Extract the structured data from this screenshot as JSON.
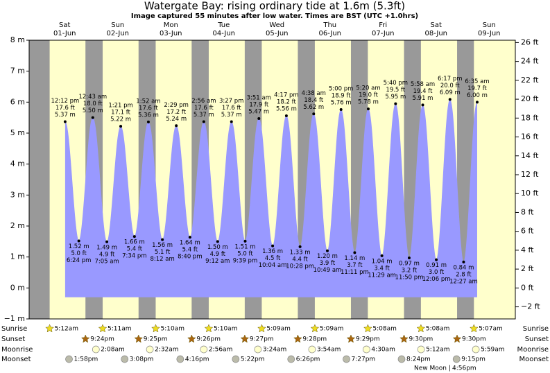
{
  "chart_data": {
    "type": "area",
    "title": "Watergate Bay: rising  ordinary tide at 1.6m (5.3ft)",
    "subtitle": "Image captured 55 minutes after low water. Times are BST (UTC +1.0hrs)",
    "ylim": [
      -1,
      8
    ],
    "yticks": [
      {
        "value": -1,
        "label": "−1 m"
      },
      {
        "value": 0,
        "label": "0 m"
      },
      {
        "value": 1,
        "label": "1 m"
      },
      {
        "value": 2,
        "label": "2 m"
      },
      {
        "value": 3,
        "label": "3 m"
      },
      {
        "value": 4,
        "label": "4 m"
      },
      {
        "value": 5,
        "label": "5 m"
      },
      {
        "value": 6,
        "label": "6 m"
      },
      {
        "value": 7,
        "label": "7 m"
      },
      {
        "value": 8,
        "label": "8 m"
      }
    ],
    "y2lim": [
      -3.28,
      26.25
    ],
    "y2ticks": [
      {
        "value": -2,
        "label": "−2 ft"
      },
      {
        "value": 0,
        "label": "0 ft"
      },
      {
        "value": 2,
        "label": "2 ft"
      },
      {
        "value": 4,
        "label": "4 ft"
      },
      {
        "value": 6,
        "label": "6 ft"
      },
      {
        "value": 8,
        "label": "8 ft"
      },
      {
        "value": 10,
        "label": "10 ft"
      },
      {
        "value": 12,
        "label": "12 ft"
      },
      {
        "value": 14,
        "label": "14 ft"
      },
      {
        "value": 16,
        "label": "16 ft"
      },
      {
        "value": 18,
        "label": "18 ft"
      },
      {
        "value": 20,
        "label": "20 ft"
      },
      {
        "value": 22,
        "label": "22 ft"
      },
      {
        "value": 24,
        "label": "24 ft"
      },
      {
        "value": 26,
        "label": "26 ft"
      }
    ],
    "tide_color": "#9999ff",
    "day_color": "#ffffcc",
    "night_color": "#999999",
    "date_color": "#dd0000",
    "row_labels": {
      "sunrise": "Sunrise",
      "sunset": "Sunset",
      "moonrise": "Moonrise",
      "moonset": "Moonset"
    },
    "moon_phase": {
      "name": "New Moon",
      "time": "4:56pm"
    },
    "days": [
      {
        "name": "Sat",
        "date": "01-Jun",
        "sunrise": "5:12am",
        "sunset": "9:24pm",
        "moonset": "1:58pm",
        "tides": [
          {
            "time": "12:12 pm",
            "height": 5.37,
            "label_m": "5.37 m",
            "label_ft": "17.6 ft",
            "high": true
          },
          {
            "time": "6:24 pm",
            "height": 1.52,
            "label_m": "1.52 m",
            "label_ft": "5.0 ft",
            "high": false
          }
        ]
      },
      {
        "name": "Sun",
        "date": "02-Jun",
        "sunrise": "5:11am",
        "sunset": "9:25pm",
        "moonrise": "2:08am",
        "moonset": "3:08pm",
        "tides": [
          {
            "time": "12:43 am",
            "height": 5.5,
            "label_m": "5.50 m",
            "label_ft": "18.0 ft",
            "high": true
          },
          {
            "time": "7:05 am",
            "height": 1.49,
            "label_m": "1.49 m",
            "label_ft": "4.9 ft",
            "high": false
          },
          {
            "time": "1:21 pm",
            "height": 5.22,
            "label_m": "5.22 m",
            "label_ft": "17.1 ft",
            "high": true
          },
          {
            "time": "7:34 pm",
            "height": 1.66,
            "label_m": "1.66 m",
            "label_ft": "5.4 ft",
            "high": false
          }
        ]
      },
      {
        "name": "Mon",
        "date": "03-Jun",
        "sunrise": "5:10am",
        "sunset": "9:26pm",
        "moonrise": "2:32am",
        "moonset": "4:16pm",
        "tides": [
          {
            "time": "1:52 am",
            "height": 5.36,
            "label_m": "5.36 m",
            "label_ft": "17.6 ft",
            "high": true
          },
          {
            "time": "8:12 am",
            "height": 1.56,
            "label_m": "1.56 m",
            "label_ft": "5.1 ft",
            "high": false
          },
          {
            "time": "2:29 pm",
            "height": 5.24,
            "label_m": "5.24 m",
            "label_ft": "17.2 ft",
            "high": true
          },
          {
            "time": "8:40 pm",
            "height": 1.64,
            "label_m": "1.64 m",
            "label_ft": "5.4 ft",
            "high": false
          }
        ]
      },
      {
        "name": "Tue",
        "date": "04-Jun",
        "sunrise": "5:10am",
        "sunset": "9:27pm",
        "moonrise": "2:56am",
        "moonset": "5:22pm",
        "tides": [
          {
            "time": "2:56 am",
            "height": 5.37,
            "label_m": "5.37 m",
            "label_ft": "17.6 ft",
            "high": true
          },
          {
            "time": "9:12 am",
            "height": 1.5,
            "label_m": "1.50 m",
            "label_ft": "4.9 ft",
            "high": false
          },
          {
            "time": "3:27 pm",
            "height": 5.37,
            "label_m": "5.37 m",
            "label_ft": "17.6 ft",
            "high": true
          },
          {
            "time": "9:39 pm",
            "height": 1.51,
            "label_m": "1.51 m",
            "label_ft": "5.0 ft",
            "high": false
          }
        ]
      },
      {
        "name": "Wed",
        "date": "05-Jun",
        "sunrise": "5:09am",
        "sunset": "9:28pm",
        "moonrise": "3:24am",
        "moonset": "6:26pm",
        "tides": [
          {
            "time": "3:51 am",
            "height": 5.47,
            "label_m": "5.47 m",
            "label_ft": "17.9 ft",
            "high": true
          },
          {
            "time": "10:04 am",
            "height": 1.36,
            "label_m": "1.36 m",
            "label_ft": "4.5 ft",
            "high": false
          },
          {
            "time": "4:17 pm",
            "height": 5.56,
            "label_m": "5.56 m",
            "label_ft": "18.2 ft",
            "high": true
          },
          {
            "time": "10:28 pm",
            "height": 1.33,
            "label_m": "1.33 m",
            "label_ft": "4.4 ft",
            "high": false
          }
        ]
      },
      {
        "name": "Thu",
        "date": "06-Jun",
        "sunrise": "5:09am",
        "sunset": "9:29pm",
        "moonrise": "3:54am",
        "moonset": "7:27pm",
        "tides": [
          {
            "time": "4:38 am",
            "height": 5.62,
            "label_m": "5.62 m",
            "label_ft": "18.4 ft",
            "high": true
          },
          {
            "time": "10:49 am",
            "height": 1.2,
            "label_m": "1.20 m",
            "label_ft": "3.9 ft",
            "high": false
          },
          {
            "time": "5:00 pm",
            "height": 5.76,
            "label_m": "5.76 m",
            "label_ft": "18.9 ft",
            "high": true
          },
          {
            "time": "11:11 pm",
            "height": 1.14,
            "label_m": "1.14 m",
            "label_ft": "3.7 ft",
            "high": false
          }
        ]
      },
      {
        "name": "Fri",
        "date": "07-Jun",
        "sunrise": "5:08am",
        "sunset": "9:30pm",
        "moonrise": "4:30am",
        "moonset": "8:24pm",
        "tides": [
          {
            "time": "5:20 am",
            "height": 5.78,
            "label_m": "5.78 m",
            "label_ft": "19.0 ft",
            "high": true
          },
          {
            "time": "11:29 am",
            "height": 1.04,
            "label_m": "1.04 m",
            "label_ft": "3.4 ft",
            "high": false
          },
          {
            "time": "5:40 pm",
            "height": 5.95,
            "label_m": "5.95 m",
            "label_ft": "19.5 ft",
            "high": true
          },
          {
            "time": "11:50 pm",
            "height": 0.97,
            "label_m": "0.97 m",
            "label_ft": "3.2 ft",
            "high": false
          }
        ]
      },
      {
        "name": "Sat",
        "date": "08-Jun",
        "sunrise": "5:08am",
        "sunset": "9:30pm",
        "moonrise": "5:12am",
        "moonset": "9:15pm",
        "tides": [
          {
            "time": "5:58 am",
            "height": 5.91,
            "label_m": "5.91 m",
            "label_ft": "19.4 ft",
            "high": true
          },
          {
            "time": "12:06 pm",
            "height": 0.91,
            "label_m": "0.91 m",
            "label_ft": "3.0 ft",
            "high": false
          },
          {
            "time": "6:17 pm",
            "height": 6.09,
            "label_m": "6.09 m",
            "label_ft": "20.0 ft",
            "high": true
          }
        ]
      },
      {
        "name": "Sun",
        "date": "09-Jun",
        "sunrise": "5:07am",
        "moonrise": "5:59am",
        "tides": [
          {
            "time": "12:27 am",
            "height": 0.84,
            "label_m": "0.84 m",
            "label_ft": "2.8 ft",
            "high": false
          },
          {
            "time": "6:35 am",
            "height": 6.0,
            "label_m": "6.00 m",
            "label_ft": "19.7 ft",
            "high": true
          }
        ]
      }
    ]
  }
}
